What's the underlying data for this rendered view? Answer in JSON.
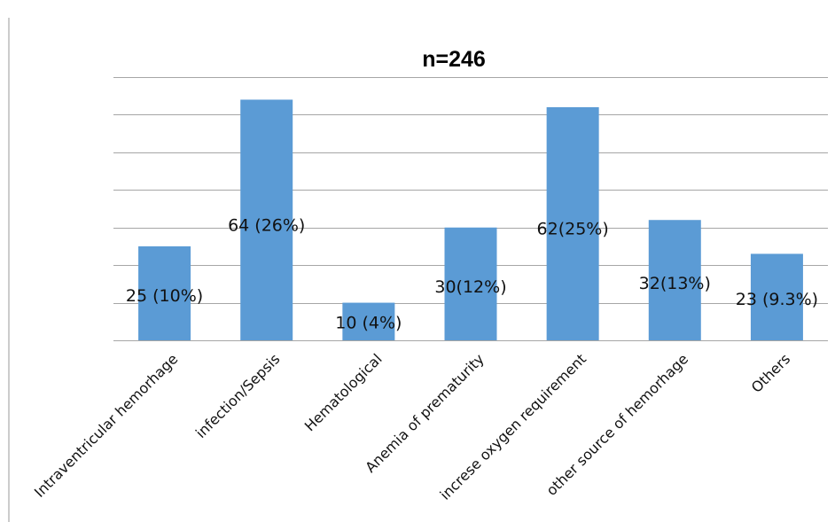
{
  "chart_data": {
    "type": "bar",
    "title": "n=246",
    "xlabel": "",
    "ylabel": "",
    "categories": [
      "Intraventricular hemorhage",
      "infection/Sepsis",
      "Hematological",
      "Anemia of prematurity",
      "increse oxygen requirement",
      "other source of hemorhage",
      "Others"
    ],
    "values": [
      25,
      64,
      10,
      30,
      62,
      32,
      23
    ],
    "data_labels": [
      "25 (10%)",
      "64 (26%)",
      "10 (4%)",
      "30(12%)",
      "62(25%)",
      "32(13%)",
      "23 (9.3%)"
    ],
    "ylim": [
      0,
      70
    ],
    "ytick_step": 10,
    "grid": true,
    "legend": "none",
    "colors": {
      "bar": "#5b9bd5",
      "grid": "#a6a6a6"
    }
  }
}
